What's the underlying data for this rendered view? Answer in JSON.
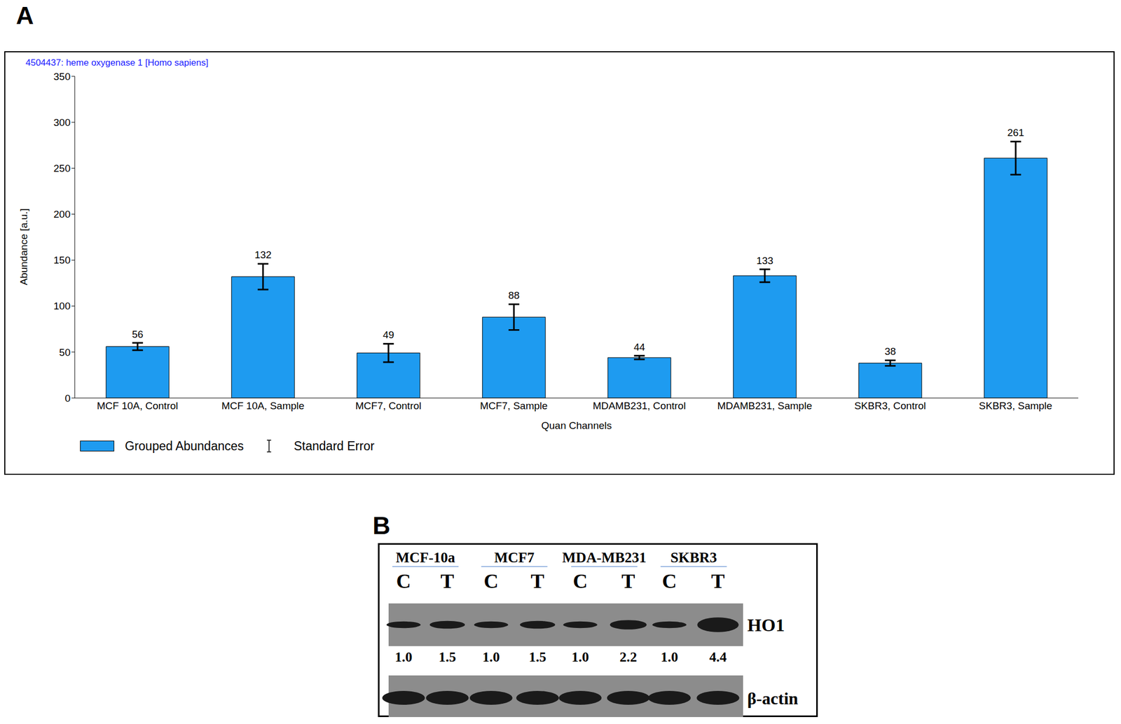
{
  "chart_data": {
    "panel": "A",
    "type": "bar",
    "title": "4504437: heme oxygenase 1 [Homo sapiens]",
    "x_label": "Quan Channels",
    "y_label": "Abundance [a.u.]",
    "categories": [
      "MCF 10A, Control",
      "MCF 10A, Sample",
      "MCF7, Control",
      "MCF7, Sample",
      "MDAMB231, Control",
      "MDAMB231, Sample",
      "SKBR3, Control",
      "SKBR3, Sample"
    ],
    "series": [
      {
        "name": "Grouped Abundances",
        "color": "#1e9bf0",
        "values": [
          56,
          132,
          49,
          88,
          44,
          133,
          38,
          261
        ],
        "standard_error": [
          4,
          14,
          10,
          14,
          2,
          7,
          3,
          18
        ]
      }
    ],
    "error_label": "Standard Error",
    "ylim": [
      0,
      350
    ],
    "yticks": [
      0,
      50,
      100,
      150,
      200,
      250,
      300,
      350
    ],
    "data_labels": true,
    "legend": "bottom"
  },
  "blot": {
    "panel": "B",
    "groups": [
      {
        "name": "MCF-10a",
        "lanes": [
          "C",
          "T"
        ]
      },
      {
        "name": "MCF7",
        "lanes": [
          "C",
          "T"
        ]
      },
      {
        "name": "MDA-MB231",
        "lanes": [
          "C",
          "T"
        ]
      },
      {
        "name": "SKBR3",
        "lanes": [
          "C",
          "T"
        ]
      }
    ],
    "rows": [
      {
        "label": "HO1",
        "values": [
          1,
          1.5,
          1,
          1.5,
          1,
          2.2,
          1,
          4.4
        ],
        "value_labels": [
          "1.0",
          "1.5",
          "1.0",
          "1.5",
          "1.0",
          "2.2",
          "1.0",
          "4.4"
        ]
      },
      {
        "label": "β-actin"
      }
    ]
  }
}
